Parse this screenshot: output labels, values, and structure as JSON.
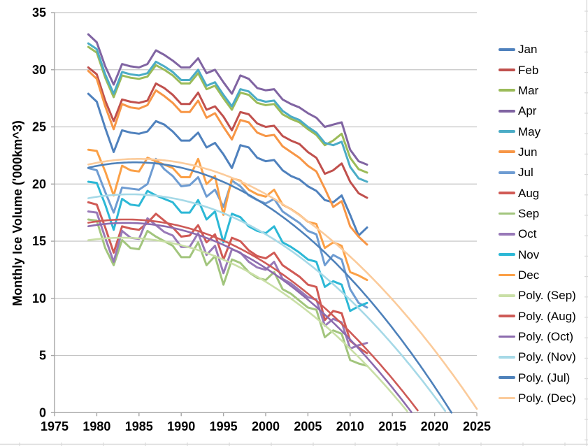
{
  "chart_data": {
    "type": "line",
    "title": "",
    "xlabel": "",
    "ylabel": "Monthly Ice Volume ('000km^3)",
    "xlim": [
      1975,
      2025
    ],
    "ylim": [
      0,
      35
    ],
    "x_ticks": [
      1975,
      1980,
      1985,
      1990,
      1995,
      2000,
      2005,
      2010,
      2015,
      2020,
      2025
    ],
    "y_ticks": [
      0,
      5,
      10,
      15,
      20,
      25,
      30,
      35
    ],
    "grid": "horizontal",
    "legend_position": "right",
    "years_start": 1979,
    "years_end": 2012,
    "series": [
      {
        "name": "Jan",
        "color": "#4F81BD",
        "values": [
          27.9,
          27.2,
          24.9,
          22.8,
          24.7,
          24.5,
          24.4,
          24.6,
          25.5,
          25.2,
          24.6,
          23.8,
          23.8,
          24.5,
          23.2,
          23.6,
          22.6,
          21.4,
          23.4,
          23.2,
          22.3,
          22.0,
          22.1,
          21.2,
          20.7,
          20.4,
          19.8,
          19.4,
          18.6,
          18.4,
          19.0,
          17.3,
          15.5,
          16.2
        ]
      },
      {
        "name": "Feb",
        "color": "#C0504D",
        "values": [
          30.2,
          29.6,
          27.3,
          25.5,
          27.4,
          27.2,
          27.1,
          27.3,
          28.8,
          28.4,
          27.8,
          27.0,
          27.0,
          28.0,
          26.5,
          26.8,
          25.9,
          24.7,
          26.3,
          26.1,
          25.3,
          25.0,
          25.1,
          24.2,
          23.8,
          23.5,
          22.8,
          22.3,
          20.9,
          21.2,
          21.8,
          20.2,
          19.2,
          18.8
        ]
      },
      {
        "name": "Mar",
        "color": "#9BBB59",
        "values": [
          32.0,
          31.5,
          29.3,
          27.6,
          29.5,
          29.3,
          29.2,
          29.4,
          30.4,
          30.0,
          29.5,
          28.8,
          28.8,
          29.7,
          28.3,
          28.6,
          27.5,
          26.5,
          28.0,
          27.8,
          27.1,
          26.9,
          27.0,
          26.1,
          25.7,
          25.4,
          24.8,
          24.3,
          23.4,
          23.8,
          24.4,
          22.3,
          21.3,
          21.0
        ]
      },
      {
        "name": "Apr",
        "color": "#8064A2",
        "values": [
          33.1,
          32.4,
          30.3,
          28.7,
          30.5,
          30.3,
          30.2,
          30.5,
          31.7,
          31.3,
          30.8,
          30.2,
          30.2,
          31.0,
          29.7,
          30.0,
          28.9,
          27.9,
          29.5,
          29.2,
          28.4,
          28.2,
          28.3,
          27.4,
          27.0,
          26.7,
          26.2,
          25.8,
          25.0,
          25.2,
          25.4,
          23.0,
          22.0,
          21.7
        ]
      },
      {
        "name": "May",
        "color": "#4BACC6",
        "values": [
          32.3,
          31.8,
          29.6,
          27.9,
          29.8,
          29.6,
          29.5,
          29.7,
          30.7,
          30.3,
          29.8,
          29.1,
          29.1,
          30.0,
          28.6,
          28.9,
          27.8,
          26.8,
          28.3,
          28.1,
          27.4,
          27.2,
          27.3,
          26.4,
          25.9,
          25.6,
          25.0,
          24.5,
          23.6,
          23.4,
          23.7,
          21.5,
          20.5,
          20.2
        ]
      },
      {
        "name": "Jun",
        "color": "#F79646",
        "values": [
          29.9,
          29.2,
          26.8,
          24.8,
          27.0,
          26.7,
          26.6,
          26.9,
          28.2,
          27.7,
          27.1,
          26.3,
          26.3,
          27.3,
          25.8,
          26.2,
          25.0,
          23.9,
          25.6,
          25.4,
          24.5,
          24.2,
          24.3,
          23.3,
          22.8,
          22.3,
          21.6,
          21.1,
          19.6,
          18.0,
          18.5,
          16.3,
          15.4,
          14.7
        ]
      },
      {
        "name": "Jul",
        "color": "#6E9CD2",
        "values": [
          21.4,
          21.2,
          19.3,
          17.5,
          19.7,
          19.6,
          19.5,
          20.0,
          22.2,
          21.3,
          20.7,
          19.8,
          19.9,
          20.6,
          18.9,
          19.5,
          18.0,
          20.3,
          19.8,
          19.0,
          18.6,
          18.3,
          18.7,
          17.6,
          17.1,
          16.6,
          15.9,
          15.6,
          12.9,
          13.8,
          13.4,
          10.8,
          9.6,
          9.2
        ]
      },
      {
        "name": "Aug",
        "color": "#D05A55",
        "values": [
          18.4,
          18.2,
          16.2,
          14.0,
          16.3,
          16.1,
          16.0,
          16.6,
          17.4,
          16.8,
          16.2,
          15.4,
          15.5,
          16.4,
          14.9,
          15.6,
          13.4,
          15.3,
          15.0,
          14.2,
          13.7,
          13.5,
          14.0,
          12.9,
          12.4,
          11.9,
          11.2,
          11.0,
          8.1,
          8.9,
          8.7,
          6.3,
          5.7,
          5.2
        ]
      },
      {
        "name": "Sep",
        "color": "#A2C57D",
        "values": [
          16.9,
          16.8,
          14.4,
          12.9,
          15.1,
          14.4,
          14.3,
          15.9,
          15.4,
          15.0,
          14.6,
          13.6,
          13.6,
          14.9,
          12.9,
          13.7,
          11.2,
          13.4,
          13.1,
          12.3,
          11.8,
          11.6,
          12.3,
          10.8,
          10.4,
          9.8,
          9.2,
          9.0,
          6.6,
          7.2,
          6.9,
          4.6,
          4.3,
          4.1
        ]
      },
      {
        "name": "Oct",
        "color": "#9879B8",
        "values": [
          17.6,
          17.5,
          15.3,
          13.2,
          15.9,
          15.3,
          15.2,
          17.0,
          16.4,
          15.8,
          15.5,
          14.5,
          14.5,
          15.7,
          13.8,
          14.6,
          12.2,
          14.3,
          14.0,
          13.2,
          12.7,
          12.5,
          13.2,
          11.7,
          11.3,
          10.7,
          10.1,
          9.9,
          7.6,
          8.2,
          7.9,
          5.6,
          5.9,
          6.1
        ]
      },
      {
        "name": "Nov",
        "color": "#2CB8D6",
        "values": [
          20.2,
          20.1,
          18.2,
          16.0,
          18.7,
          18.2,
          18.1,
          19.4,
          19.0,
          18.7,
          18.4,
          17.5,
          17.5,
          18.6,
          16.9,
          17.6,
          14.9,
          17.4,
          17.1,
          16.3,
          15.9,
          15.7,
          16.3,
          14.9,
          14.5,
          14.0,
          13.4,
          13.2,
          11.0,
          11.5,
          11.2,
          8.9,
          9.3,
          9.6
        ]
      },
      {
        "name": "Dec",
        "color": "#FBA046",
        "values": [
          23.0,
          22.9,
          21.1,
          19.0,
          21.6,
          21.2,
          21.1,
          22.3,
          22.0,
          21.7,
          21.4,
          20.6,
          20.6,
          22.2,
          20.0,
          20.7,
          17.3,
          20.5,
          20.3,
          19.5,
          19.1,
          18.9,
          19.5,
          18.2,
          17.8,
          17.3,
          16.7,
          16.5,
          14.4,
          14.9,
          14.6,
          12.3,
          12.0,
          11.6
        ]
      }
    ],
    "poly_fits": [
      {
        "name": "Poly. (Sep)",
        "color": "#C9DFA6",
        "vertex_year": 1983.0,
        "peak": 15.3,
        "zero_year": 2016.9,
        "draw_to": 2016.9
      },
      {
        "name": "Poly. (Aug)",
        "color": "#CE5B57",
        "vertex_year": 1983.5,
        "peak": 16.9,
        "zero_year": 2018.2,
        "draw_to": 2018.2
      },
      {
        "name": "Poly. (Oct)",
        "color": "#8C6BAE",
        "vertex_year": 1983.5,
        "peak": 16.6,
        "zero_year": 2017.3,
        "draw_to": 2017.3
      },
      {
        "name": "Poly. (Nov)",
        "color": "#A6D9E7",
        "vertex_year": 1984.0,
        "peak": 19.1,
        "zero_year": 2021.4,
        "draw_to": 2021.4
      },
      {
        "name": "Poly. (Jul)",
        "color": "#4E81BA",
        "vertex_year": 1984.5,
        "peak": 21.9,
        "zero_year": 2022.0,
        "draw_to": 2022.0
      },
      {
        "name": "Poly. (Dec)",
        "color": "#FBCB9B",
        "vertex_year": 1985.0,
        "peak": 22.2,
        "zero_year": 2025.3,
        "draw_to": 2025.0
      }
    ],
    "colors": {
      "gridline": "#C4C4C4",
      "axis": "#A6A6A6",
      "cell_edge": "#D9D9D9",
      "text": "#000000"
    }
  }
}
